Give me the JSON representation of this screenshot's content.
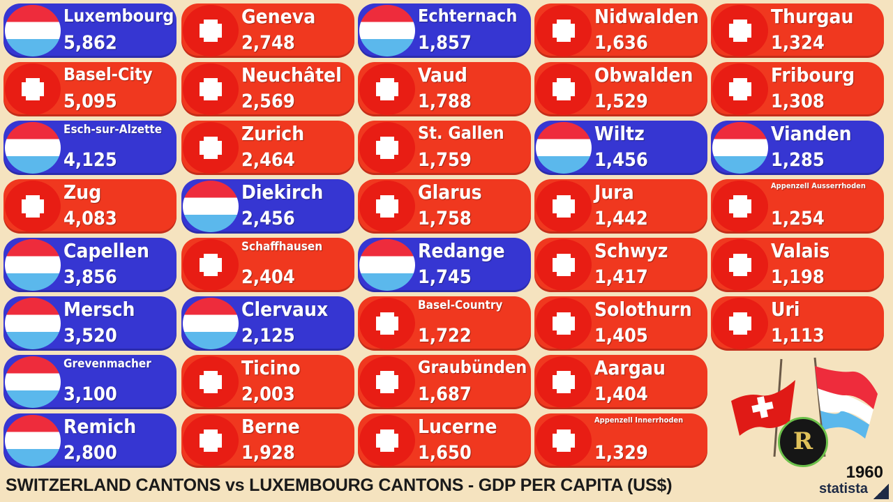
{
  "colors": {
    "switzerland": "#f0381f",
    "luxembourg": "#3636d2",
    "background": "#f5e3bf"
  },
  "chart_data": {
    "type": "table",
    "title": "SWITZERLAND CANTONS vs LUXEMBOURG CANTONS - GDP PER CAPITA (US$)",
    "year": "1960",
    "source": "statista",
    "columns": [
      [
        {
          "name": "Luxembourg",
          "value": "5,862",
          "country": "lu"
        },
        {
          "name": "Basel-City",
          "value": "5,095",
          "country": "ch"
        },
        {
          "name": "Esch-sur-Alzette",
          "value": "4,125",
          "country": "lu"
        },
        {
          "name": "Zug",
          "value": "4,083",
          "country": "ch"
        },
        {
          "name": "Capellen",
          "value": "3,856",
          "country": "lu"
        },
        {
          "name": "Mersch",
          "value": "3,520",
          "country": "lu"
        },
        {
          "name": "Grevenmacher",
          "value": "3,100",
          "country": "lu"
        },
        {
          "name": "Remich",
          "value": "2,800",
          "country": "lu"
        }
      ],
      [
        {
          "name": "Geneva",
          "value": "2,748",
          "country": "ch"
        },
        {
          "name": "Neuchâtel",
          "value": "2,569",
          "country": "ch"
        },
        {
          "name": "Zurich",
          "value": "2,464",
          "country": "ch"
        },
        {
          "name": "Diekirch",
          "value": "2,456",
          "country": "lu"
        },
        {
          "name": "Schaffhausen",
          "value": "2,404",
          "country": "ch"
        },
        {
          "name": "Clervaux",
          "value": "2,125",
          "country": "lu"
        },
        {
          "name": "Ticino",
          "value": "2,003",
          "country": "ch"
        },
        {
          "name": "Berne",
          "value": "1,928",
          "country": "ch"
        }
      ],
      [
        {
          "name": "Echternach",
          "value": "1,857",
          "country": "lu"
        },
        {
          "name": "Vaud",
          "value": "1,788",
          "country": "ch"
        },
        {
          "name": "St. Gallen",
          "value": "1,759",
          "country": "ch"
        },
        {
          "name": "Glarus",
          "value": "1,758",
          "country": "ch"
        },
        {
          "name": "Redange",
          "value": "1,745",
          "country": "lu"
        },
        {
          "name": "Basel-Country",
          "value": "1,722",
          "country": "ch"
        },
        {
          "name": "Graubünden",
          "value": "1,687",
          "country": "ch"
        },
        {
          "name": "Lucerne",
          "value": "1,650",
          "country": "ch"
        }
      ],
      [
        {
          "name": "Nidwalden",
          "value": "1,636",
          "country": "ch"
        },
        {
          "name": "Obwalden",
          "value": "1,529",
          "country": "ch"
        },
        {
          "name": "Wiltz",
          "value": "1,456",
          "country": "lu"
        },
        {
          "name": "Jura",
          "value": "1,442",
          "country": "ch"
        },
        {
          "name": "Schwyz",
          "value": "1,417",
          "country": "ch"
        },
        {
          "name": "Solothurn",
          "value": "1,405",
          "country": "ch"
        },
        {
          "name": "Aargau",
          "value": "1,404",
          "country": "ch"
        },
        {
          "name": "Appenzell Innerrhoden",
          "value": "1,329",
          "country": "ch"
        }
      ],
      [
        {
          "name": "Thurgau",
          "value": "1,324",
          "country": "ch"
        },
        {
          "name": "Fribourg",
          "value": "1,308",
          "country": "ch"
        },
        {
          "name": "Vianden",
          "value": "1,285",
          "country": "lu"
        },
        {
          "name": "Appenzell Ausserrhoden",
          "value": "1,254",
          "country": "ch"
        },
        {
          "name": "Valais",
          "value": "1,198",
          "country": "ch"
        },
        {
          "name": "Uri",
          "value": "1,113",
          "country": "ch"
        }
      ]
    ]
  }
}
